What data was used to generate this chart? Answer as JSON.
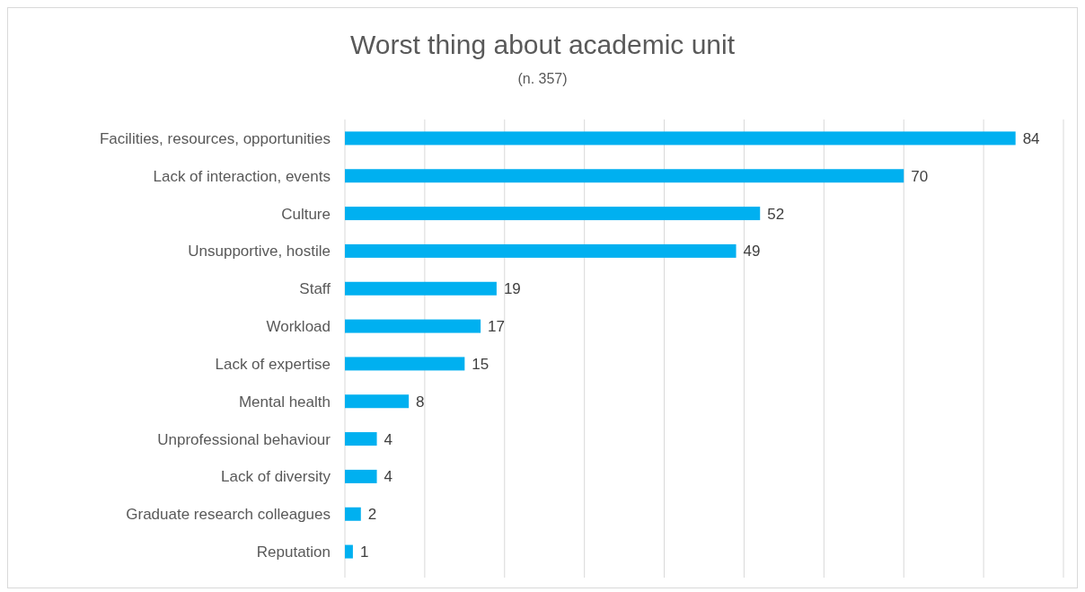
{
  "chart_data": {
    "type": "bar",
    "orientation": "horizontal",
    "title": "Worst thing about academic unit",
    "subtitle": "(n. 357)",
    "categories": [
      "Facilities, resources, opportunities",
      "Lack of interaction, events",
      "Culture",
      "Unsupportive, hostile",
      "Staff",
      "Workload",
      "Lack of expertise",
      "Mental health",
      "Unprofessional behaviour",
      "Lack of diversity",
      "Graduate research colleagues",
      "Reputation"
    ],
    "values": [
      84,
      70,
      52,
      49,
      19,
      17,
      15,
      8,
      4,
      4,
      2,
      1
    ],
    "color": "#00b0f0",
    "xlim": [
      0,
      90
    ],
    "xticks": [
      {
        "value": 0,
        "label": null
      },
      {
        "value": 10,
        "label": null
      },
      {
        "value": 20,
        "label": null
      },
      {
        "value": 30,
        "label": null
      },
      {
        "value": 40,
        "label": null
      },
      {
        "value": 50,
        "label": null
      },
      {
        "value": 60,
        "label": null
      },
      {
        "value": 70,
        "label": null
      },
      {
        "value": 80,
        "label": null
      },
      {
        "value": 90,
        "label": null
      }
    ],
    "grid": "x",
    "tick_labels": "y",
    "data_labels": true
  }
}
